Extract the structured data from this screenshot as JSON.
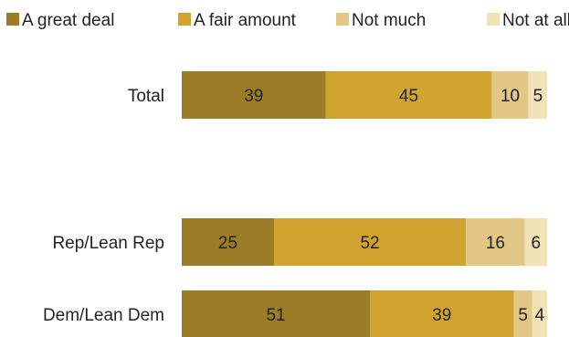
{
  "chart_data": {
    "type": "bar",
    "orientation": "horizontal",
    "stacked": true,
    "categories": [
      "Total",
      "Rep/Lean Rep",
      "Dem/Lean Dem"
    ],
    "series": [
      {
        "name": "A great deal",
        "values": [
          39,
          25,
          51
        ],
        "color": "#9a7d26"
      },
      {
        "name": "A fair amount",
        "values": [
          45,
          52,
          39
        ],
        "color": "#d0a42f"
      },
      {
        "name": "Not much",
        "values": [
          10,
          16,
          5
        ],
        "color": "#e2c884"
      },
      {
        "name": "Not at all",
        "values": [
          5,
          6,
          4
        ],
        "color": "#f1e2b8"
      }
    ],
    "xlim": [
      0,
      100
    ],
    "grid": false,
    "legend_position": "top"
  }
}
